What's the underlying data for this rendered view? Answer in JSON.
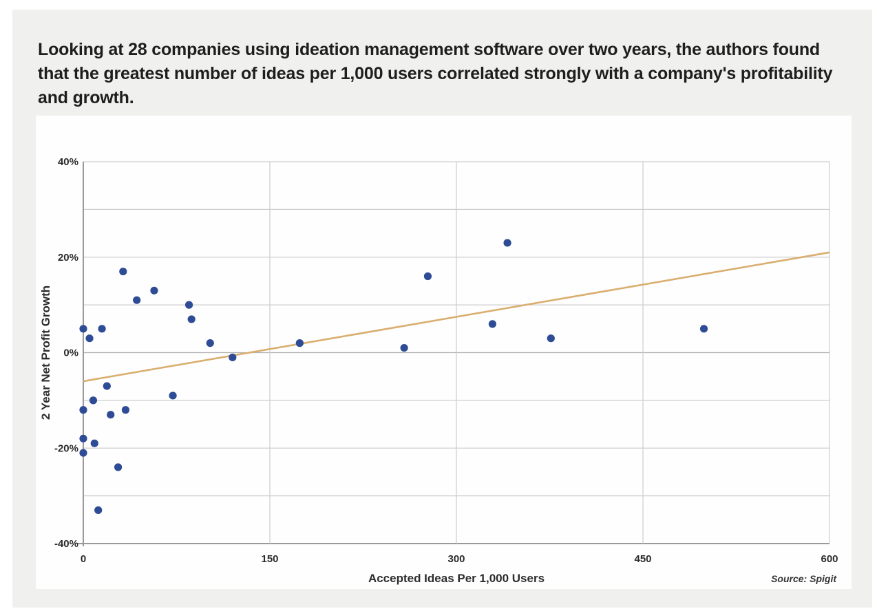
{
  "page": {
    "background": "#f0f0ef",
    "card_background": "#fefefe"
  },
  "intro": {
    "text": "Looking at 28 companies using ideation management software over two years, the authors found that the greatest number of ideas per 1,000 users correlated strongly with a company's profitability and growth."
  },
  "chart_data": {
    "type": "scatter",
    "title": "",
    "xlabel": "Accepted Ideas Per 1,000 Users",
    "ylabel": "2 Year Net Profit Growth",
    "source": "Source: Spigit",
    "xlim": [
      0,
      600
    ],
    "ylim": [
      -40,
      40
    ],
    "x_ticks": [
      0,
      150,
      300,
      450,
      600
    ],
    "y_tick_values": [
      40,
      20,
      0,
      -20,
      -40
    ],
    "y_tick_labels": [
      "40%",
      "20%",
      "0%",
      "-20%",
      "-40%"
    ],
    "y_grid_step": 10,
    "grid": true,
    "legend": "none",
    "points": [
      [
        0,
        5
      ],
      [
        5,
        3
      ],
      [
        15,
        5
      ],
      [
        32,
        17
      ],
      [
        43,
        11
      ],
      [
        57,
        13
      ],
      [
        85,
        10
      ],
      [
        87,
        7
      ],
      [
        102,
        2
      ],
      [
        120,
        -1
      ],
      [
        174,
        2
      ],
      [
        19,
        -7
      ],
      [
        8,
        -10
      ],
      [
        0,
        -12
      ],
      [
        22,
        -13
      ],
      [
        34,
        -12
      ],
      [
        72,
        -9
      ],
      [
        0,
        -18
      ],
      [
        9,
        -19
      ],
      [
        0,
        -21
      ],
      [
        28,
        -24
      ],
      [
        12,
        -33
      ],
      [
        258,
        1
      ],
      [
        277,
        16
      ],
      [
        341,
        23
      ],
      [
        329,
        6
      ],
      [
        376,
        3
      ],
      [
        499,
        5
      ]
    ],
    "trendline": {
      "x1": 0,
      "y1": -6,
      "x2": 600,
      "y2": 21
    },
    "colors": {
      "point": "#2e4c95",
      "trend": "#d9ae6f",
      "grid": "#cdcdcd",
      "zero_line": "#b0b0b0",
      "axis": "#999999",
      "label": "#2b2b2b"
    }
  }
}
